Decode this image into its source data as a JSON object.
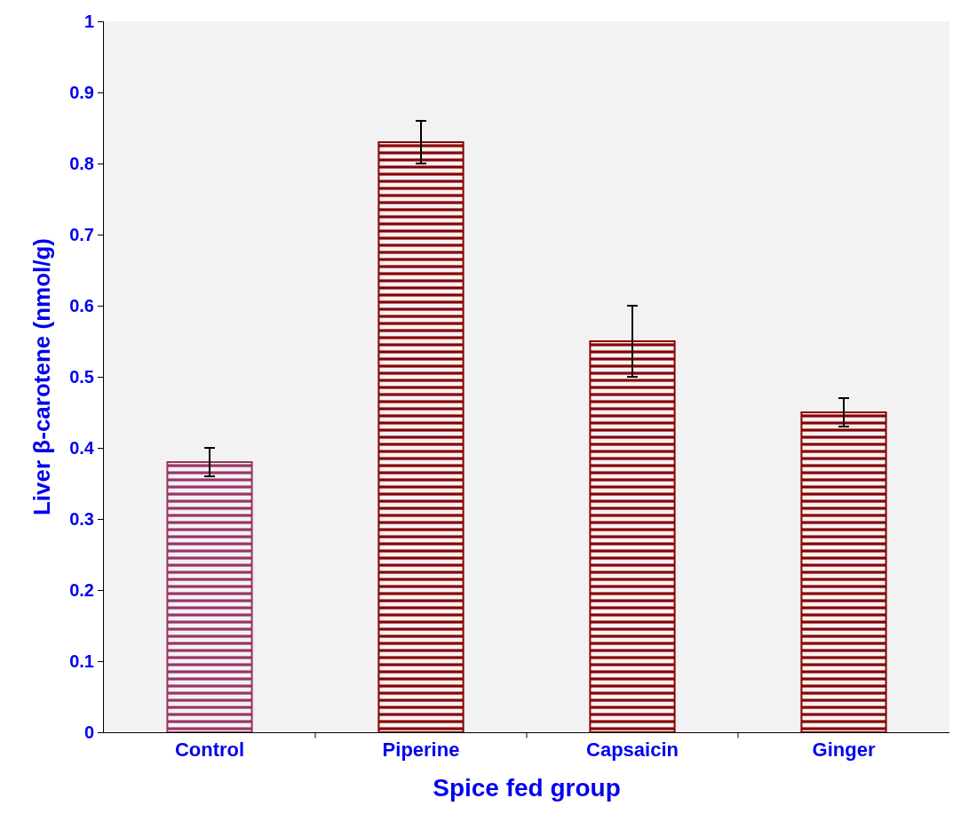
{
  "chart_data": {
    "type": "bar",
    "xlabel": "Spice fed group",
    "ylabel": "Liver β-carotene (nmol/g)",
    "categories": [
      "Control",
      "Piperine",
      "Capsaicin",
      "Ginger"
    ],
    "values": [
      0.38,
      0.83,
      0.55,
      0.45
    ],
    "errors": [
      0.02,
      0.03,
      0.05,
      0.02
    ],
    "colors": [
      "#993366",
      "#8b0000",
      "#8b0000",
      "#8b0000"
    ],
    "ylim": [
      0,
      1
    ],
    "yticks": [
      0,
      0.1,
      0.2,
      0.3,
      0.4,
      0.5,
      0.6,
      0.7,
      0.8,
      0.9,
      1
    ],
    "grid": false
  }
}
